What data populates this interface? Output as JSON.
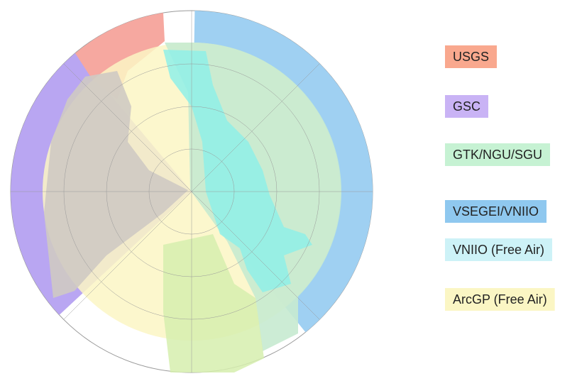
{
  "legend": {
    "items": [
      {
        "label": "USGS",
        "color": "#f9a88e"
      },
      {
        "label": "GSC",
        "color": "#c9b3f5"
      },
      {
        "label": "GTK/NGU/SGU",
        "color": "#c6f2d3"
      },
      {
        "label": "VSEGEI/VNIIO",
        "color": "#8fc8ef"
      },
      {
        "label": "VNIIO (Free Air)",
        "color": "#cdf2f7"
      },
      {
        "label": "ArcGP (Free Air)",
        "color": "#fbf6c4"
      }
    ]
  }
}
